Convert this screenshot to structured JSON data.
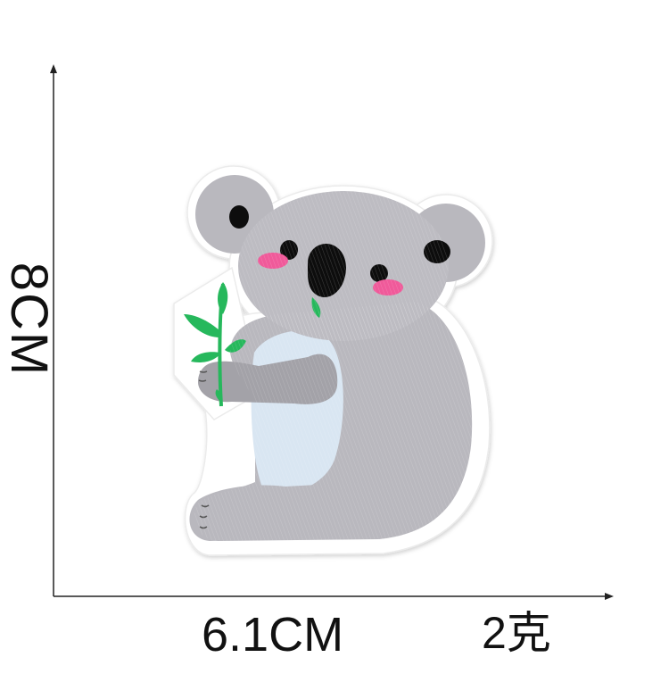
{
  "dimensions": {
    "height": "8CM",
    "width": "6.1CM",
    "weight": "2克"
  },
  "subject": {
    "icon": "koala-patch-icon",
    "colors": {
      "fur": "#b9b8be",
      "fur_dark": "#a3a2a8",
      "belly": "#d9e6f2",
      "nose": "#111111",
      "cheeks": "#f05a9a",
      "leaf": "#27b85c",
      "patch_border": "#ffffff",
      "axis": "#222222"
    }
  }
}
